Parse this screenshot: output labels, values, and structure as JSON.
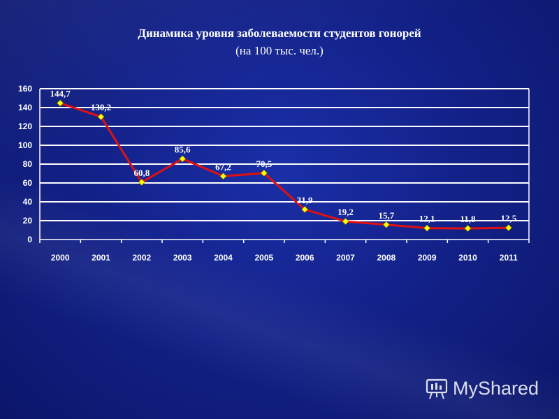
{
  "title": "Динамика уровня заболеваемости студентов гонорей",
  "subtitle": "(на 100 тыс. чел.)",
  "watermark": "MyShared",
  "chart_data": {
    "type": "line",
    "title": "Динамика уровня заболеваемости студентов гонорей",
    "subtitle": "(на 100 тыс. чел.)",
    "categories": [
      "2000",
      "2001",
      "2002",
      "2003",
      "2004",
      "2005",
      "2006",
      "2007",
      "2008",
      "2009",
      "2010",
      "2011"
    ],
    "values": [
      144.7,
      130.2,
      60.8,
      85.6,
      67.2,
      70.5,
      31.9,
      19.2,
      15.7,
      12.1,
      11.8,
      12.5
    ],
    "data_labels": [
      "144,7",
      "130,2",
      "60,8",
      "85,6",
      "67,2",
      "70,5",
      "31,9",
      "19,2",
      "15,7",
      "12,1",
      "11,8",
      "12,5"
    ],
    "yticks": [
      "0",
      "20",
      "40",
      "60",
      "80",
      "100",
      "120",
      "140",
      "160"
    ],
    "ylim": [
      0,
      160
    ],
    "grid": true,
    "legend": "none",
    "colors": {
      "line": "#e01010",
      "marker": "#ffff00",
      "grid": "#ffffff",
      "text": "#ffffff"
    }
  }
}
